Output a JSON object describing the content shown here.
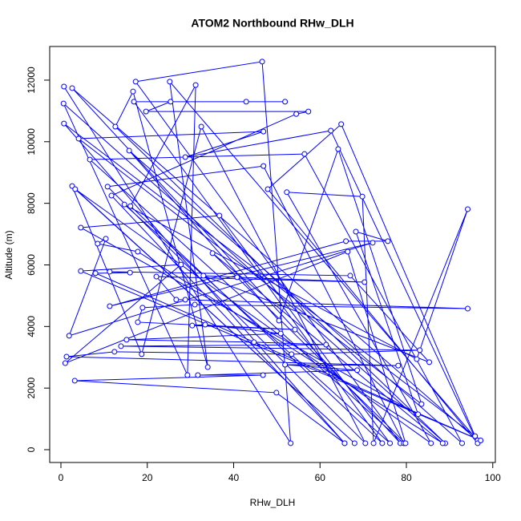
{
  "chart_data": {
    "type": "line",
    "title": "ATOM2 Northbound RHw_DLH",
    "x_label": "RHw_DLH",
    "y_label": "Altitude (m)",
    "color": "#0000ff",
    "marker": "circle",
    "xlim": [
      -2.6,
      100.6
    ],
    "ylim": [
      -416,
      13092
    ],
    "xticks": [
      0,
      20,
      40,
      60,
      80,
      100
    ],
    "yticks": [
      0,
      2000,
      4000,
      6000,
      8000,
      10000,
      12000
    ],
    "x": [
      0.7,
      53.2,
      46.6,
      17.3,
      78.6,
      2.6,
      96.5,
      25.2,
      34.0,
      16.7,
      12.6,
      89.0,
      0.6,
      29.3,
      31.2,
      16.1,
      74.4,
      16.9,
      51.9,
      42.9,
      25.4,
      19.7,
      57.3,
      54.5,
      11.7,
      65.7,
      0.7,
      95.9,
      64.9,
      47.9,
      96.5,
      62.5,
      28.8,
      46.9,
      4.1,
      83.5,
      64.2,
      50.5,
      15.8,
      92.9,
      56.4,
      6.7,
      79.4,
      46.9,
      10.8,
      70.5,
      32.5,
      18.7,
      2.6,
      68.0,
      3.3,
      85.7,
      52.3,
      69.8,
      72.4,
      94.2,
      82.4,
      14.7,
      76.2,
      36.7,
      4.6,
      82.7,
      68.3,
      75.7,
      66.0,
      11.3,
      72.2,
      1.9,
      10.4,
      8.5,
      17.8,
      88.4,
      35.1,
      79.8,
      66.4,
      1.0,
      27.8,
      4.6,
      97.2,
      8.0,
      16.0,
      11.3,
      67.0,
      85.3,
      33.0,
      40.8,
      70.3,
      22.1,
      26.7,
      28.8,
      94.2,
      31.0,
      18.9,
      17.8,
      54.2,
      30.4,
      33.4,
      50.9,
      15.2,
      44.7,
      61.4,
      13.9,
      83.1,
      53.4,
      12.4,
      1.3,
      78.1,
      51.9,
      68.6,
      31.7,
      46.8,
      3.2,
      49.9,
      65.7
    ],
    "values": [
      11790,
      210,
      12600,
      11950,
      210,
      11740,
      300,
      11950,
      2680,
      11630,
      10490,
      210,
      11240,
      2420,
      11840,
      7910,
      210,
      11300,
      11300,
      11300,
      11300,
      10980,
      10980,
      10900,
      8250,
      210,
      10590,
      440,
      10570,
      8460,
      210,
      10360,
      9500,
      10330,
      10100,
      1480,
      9760,
      4190,
      9710,
      210,
      9600,
      9420,
      210,
      9210,
      8540,
      210,
      10490,
      3100,
      8560,
      210,
      8460,
      210,
      8360,
      8220,
      210,
      7810,
      2940,
      7960,
      210,
      7600,
      7210,
      1150,
      7080,
      6770,
      6770,
      4660,
      6720,
      3700,
      6850,
      6690,
      6430,
      210,
      6380,
      210,
      6430,
      2810,
      6010,
      5800,
      300,
      5730,
      5750,
      5780,
      5650,
      2840,
      5650,
      5600,
      5440,
      5620,
      4870,
      4870,
      4580,
      4710,
      4610,
      4140,
      3900,
      4030,
      4060,
      3770,
      3570,
      3490,
      3410,
      3360,
      3230,
      3100,
      3180,
      3020,
      2730,
      2760,
      2580,
      2420,
      2420,
      2240,
      1850,
      210
    ]
  }
}
